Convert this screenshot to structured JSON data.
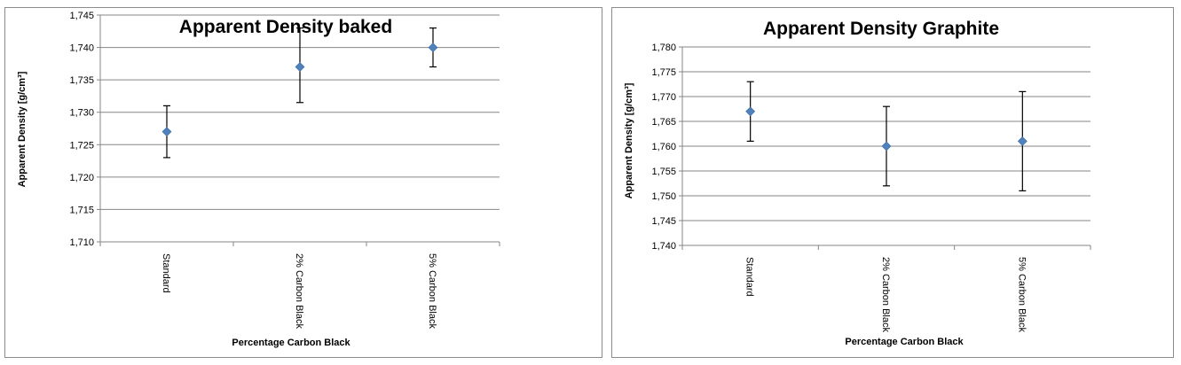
{
  "charts": [
    {
      "title": "Apparent Density baked",
      "xlabel": "Percentage Carbon Black",
      "ylabel": "Apparent Density [g/cm³]"
    },
    {
      "title": "Apparent Density Graphite",
      "xlabel": "Percentage Carbon Black",
      "ylabel": "Apparent Density [g/cm³]"
    }
  ],
  "colors": {
    "marker": "#4f81bd",
    "gridline": "#868686",
    "axis": "#868686",
    "errorbar": "#000000"
  },
  "chart_data": [
    {
      "type": "scatter",
      "title": "Apparent Density baked",
      "xlabel": "Percentage Carbon Black",
      "ylabel": "Apparent Density [g/cm³]",
      "categories": [
        "Standard",
        "2% Carbon Black",
        "5% Carbon Black"
      ],
      "values": [
        1.727,
        1.737,
        1.74
      ],
      "error_low": [
        1.723,
        1.7315,
        1.737
      ],
      "error_high": [
        1.731,
        1.743,
        1.743
      ],
      "ylim": [
        1.71,
        1.745
      ],
      "yticks": [
        "1,710",
        "1,715",
        "1,720",
        "1,725",
        "1,730",
        "1,735",
        "1,740",
        "1,745"
      ],
      "grid": true,
      "legend": "none"
    },
    {
      "type": "scatter",
      "title": "Apparent Density Graphite",
      "xlabel": "Percentage Carbon Black",
      "ylabel": "Apparent Density [g/cm³]",
      "categories": [
        "Standard",
        "2% Carbon Black",
        "5% Carbon Black"
      ],
      "values": [
        1.767,
        1.76,
        1.761
      ],
      "error_low": [
        1.761,
        1.752,
        1.751
      ],
      "error_high": [
        1.773,
        1.768,
        1.771
      ],
      "ylim": [
        1.74,
        1.78
      ],
      "yticks": [
        "1,740",
        "1,745",
        "1,750",
        "1,755",
        "1,760",
        "1,765",
        "1,770",
        "1,775",
        "1,780"
      ],
      "grid": true,
      "legend": "none"
    }
  ]
}
